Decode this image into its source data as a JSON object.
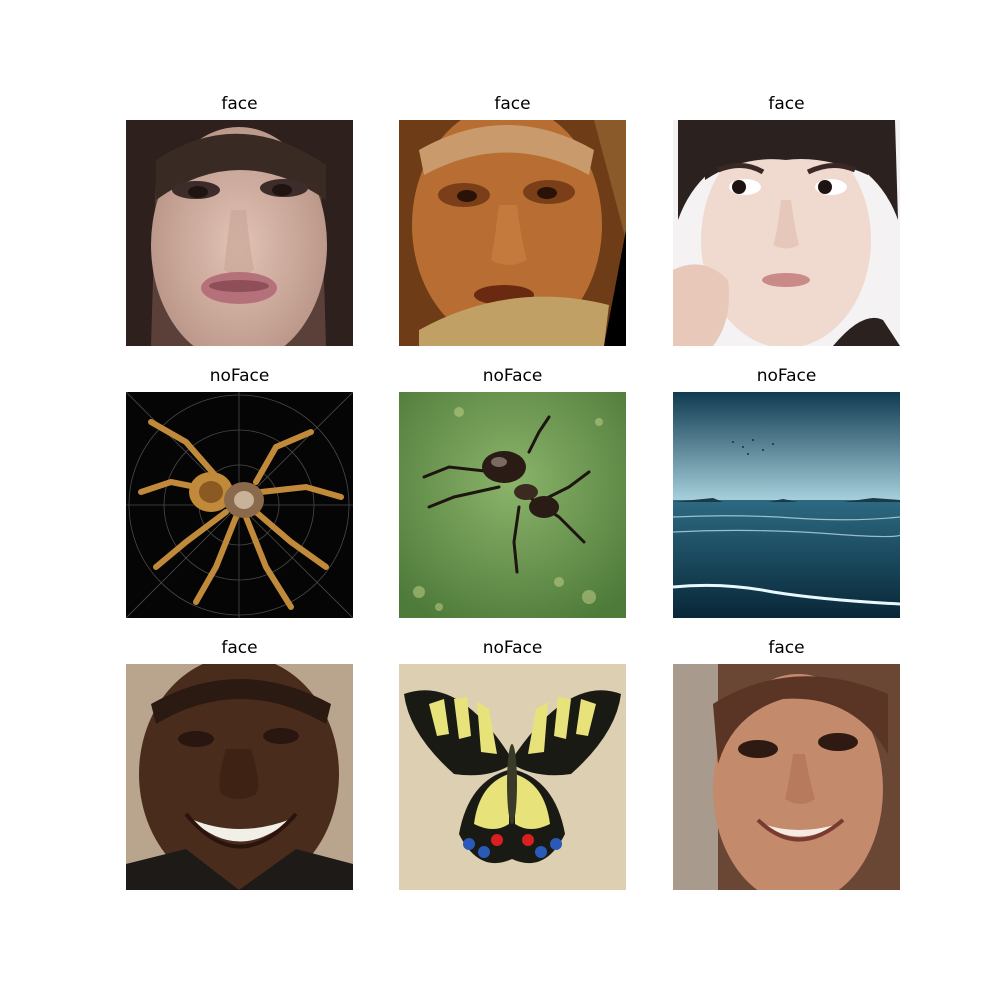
{
  "figure": {
    "panels": [
      {
        "label": "face",
        "subject": "woman-dark-hair-face"
      },
      {
        "label": "face",
        "subject": "elderly-woman-face"
      },
      {
        "label": "face",
        "subject": "young-woman-face-hand-on-cheek"
      },
      {
        "label": "noFace",
        "subject": "orb-weaver-spider-on-web"
      },
      {
        "label": "noFace",
        "subject": "ant-on-green-leaf"
      },
      {
        "label": "noFace",
        "subject": "ocean-shore-at-dusk"
      },
      {
        "label": "face",
        "subject": "smiling-man-face"
      },
      {
        "label": "noFace",
        "subject": "swallowtail-butterfly"
      },
      {
        "label": "face",
        "subject": "smiling-woman-face"
      }
    ]
  }
}
